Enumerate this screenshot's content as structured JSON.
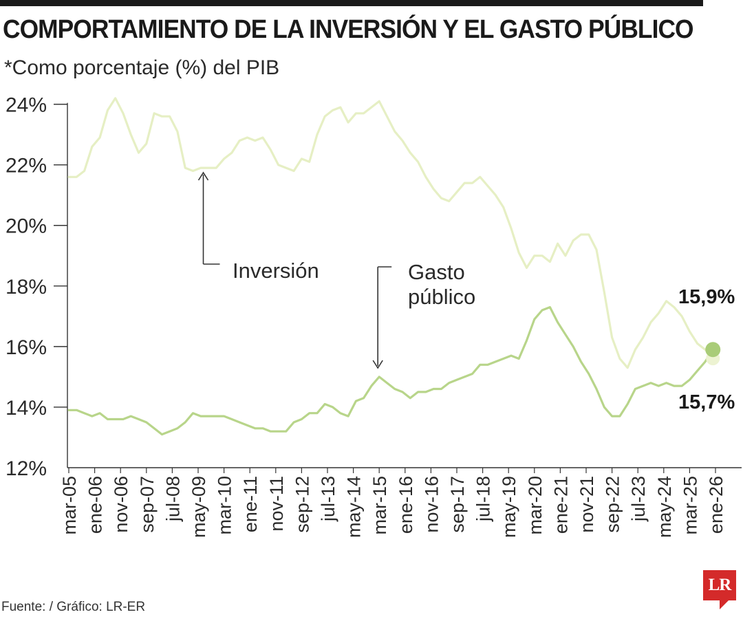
{
  "header": {
    "title": "COMPORTAMIENTO DE LA INVERSIÓN Y EL GASTO PÚBLICO",
    "subtitle": "*Como porcentaje (%) del PIB"
  },
  "footer": {
    "source": "Fuente: / Gráfico: LR-ER",
    "logo": "LR"
  },
  "colors": {
    "inversion": "#e6efc4",
    "gasto": "#b8d58a",
    "marker_gasto": "#a9cc78",
    "marker_inversion": "#edf3d2",
    "axis": "#333333"
  },
  "chart_data": {
    "type": "line",
    "ylim": [
      12,
      24.4
    ],
    "yticks": [
      12,
      14,
      16,
      18,
      20,
      22,
      24
    ],
    "ytick_labels": [
      "12%",
      "14%",
      "16%",
      "18%",
      "20%",
      "22%",
      "24%"
    ],
    "x_range": [
      "2005-03",
      "2026-01"
    ],
    "xticks": [
      {
        "date": "2005-03",
        "label": "mar-05"
      },
      {
        "date": "2006-01",
        "label": "ene-06"
      },
      {
        "date": "2006-11",
        "label": "nov-06"
      },
      {
        "date": "2007-09",
        "label": "sep-07"
      },
      {
        "date": "2008-07",
        "label": "jul-08"
      },
      {
        "date": "2009-05",
        "label": "may-09"
      },
      {
        "date": "2010-03",
        "label": "mar-10"
      },
      {
        "date": "2011-01",
        "label": "ene-11"
      },
      {
        "date": "2011-11",
        "label": "nov-11"
      },
      {
        "date": "2012-09",
        "label": "sep-12"
      },
      {
        "date": "2013-07",
        "label": "jul-13"
      },
      {
        "date": "2014-05",
        "label": "may-14"
      },
      {
        "date": "2015-03",
        "label": "mar-15"
      },
      {
        "date": "2016-01",
        "label": "ene-16"
      },
      {
        "date": "2016-11",
        "label": "nov-16"
      },
      {
        "date": "2017-09",
        "label": "sep-17"
      },
      {
        "date": "2018-07",
        "label": "jul-18"
      },
      {
        "date": "2019-05",
        "label": "may-19"
      },
      {
        "date": "2020-03",
        "label": "mar-20"
      },
      {
        "date": "2021-01",
        "label": "ene-21"
      },
      {
        "date": "2021-11",
        "label": "nov-21"
      },
      {
        "date": "2022-09",
        "label": "sep-22"
      },
      {
        "date": "2023-07",
        "label": "jul-23"
      },
      {
        "date": "2024-05",
        "label": "may-24"
      },
      {
        "date": "2025-03",
        "label": "mar-25"
      },
      {
        "date": "2026-01",
        "label": "ene-26"
      }
    ],
    "series": [
      {
        "name": "Inversión",
        "x": [
          "2005-03",
          "2005-06",
          "2005-09",
          "2005-12",
          "2006-03",
          "2006-06",
          "2006-09",
          "2006-12",
          "2007-03",
          "2007-06",
          "2007-09",
          "2007-12",
          "2008-03",
          "2008-06",
          "2008-09",
          "2008-12",
          "2009-03",
          "2009-06",
          "2009-09",
          "2009-12",
          "2010-03",
          "2010-06",
          "2010-09",
          "2010-12",
          "2011-03",
          "2011-06",
          "2011-09",
          "2011-12",
          "2012-03",
          "2012-06",
          "2012-09",
          "2012-12",
          "2013-03",
          "2013-06",
          "2013-09",
          "2013-12",
          "2014-03",
          "2014-06",
          "2014-09",
          "2014-12",
          "2015-03",
          "2015-06",
          "2015-09",
          "2015-12",
          "2016-03",
          "2016-06",
          "2016-09",
          "2016-12",
          "2017-03",
          "2017-06",
          "2017-09",
          "2017-12",
          "2018-03",
          "2018-06",
          "2018-09",
          "2018-12",
          "2019-03",
          "2019-06",
          "2019-09",
          "2019-12",
          "2020-03",
          "2020-06",
          "2020-09",
          "2020-12",
          "2021-03",
          "2021-06",
          "2021-09",
          "2021-12",
          "2022-03",
          "2022-06",
          "2022-09",
          "2022-12",
          "2023-03",
          "2023-06",
          "2023-09",
          "2023-12",
          "2024-03",
          "2024-06",
          "2024-09",
          "2024-12",
          "2025-03",
          "2025-06",
          "2025-09",
          "2025-12"
        ],
        "values": [
          21.6,
          21.6,
          21.8,
          22.6,
          22.9,
          23.8,
          24.2,
          23.7,
          23.0,
          22.4,
          22.7,
          23.7,
          23.6,
          23.6,
          23.1,
          21.9,
          21.8,
          21.9,
          21.9,
          21.9,
          22.2,
          22.4,
          22.8,
          22.9,
          22.8,
          22.9,
          22.5,
          22.0,
          21.9,
          21.8,
          22.2,
          22.1,
          23.0,
          23.6,
          23.8,
          23.9,
          23.4,
          23.7,
          23.7,
          23.9,
          24.1,
          23.6,
          23.1,
          22.8,
          22.4,
          22.1,
          21.6,
          21.2,
          20.9,
          20.8,
          21.1,
          21.4,
          21.4,
          21.6,
          21.3,
          21.0,
          20.6,
          19.9,
          19.1,
          18.6,
          19.0,
          19.0,
          18.8,
          19.4,
          19.0,
          19.5,
          19.7,
          19.7,
          19.2,
          17.8,
          16.3,
          15.6,
          15.3,
          15.9,
          16.3,
          16.8,
          17.1,
          17.5,
          17.3,
          17.0,
          16.5,
          16.1,
          15.9,
          15.7
        ]
      },
      {
        "name": "Gasto público",
        "x": [
          "2005-03",
          "2005-06",
          "2005-09",
          "2005-12",
          "2006-03",
          "2006-06",
          "2006-09",
          "2006-12",
          "2007-03",
          "2007-06",
          "2007-09",
          "2007-12",
          "2008-03",
          "2008-06",
          "2008-09",
          "2008-12",
          "2009-03",
          "2009-06",
          "2009-09",
          "2009-12",
          "2010-03",
          "2010-06",
          "2010-09",
          "2010-12",
          "2011-03",
          "2011-06",
          "2011-09",
          "2011-12",
          "2012-03",
          "2012-06",
          "2012-09",
          "2012-12",
          "2013-03",
          "2013-06",
          "2013-09",
          "2013-12",
          "2014-03",
          "2014-06",
          "2014-09",
          "2014-12",
          "2015-03",
          "2015-06",
          "2015-09",
          "2015-12",
          "2016-03",
          "2016-06",
          "2016-09",
          "2016-12",
          "2017-03",
          "2017-06",
          "2017-09",
          "2017-12",
          "2018-03",
          "2018-06",
          "2018-09",
          "2018-12",
          "2019-03",
          "2019-06",
          "2019-09",
          "2019-12",
          "2020-03",
          "2020-06",
          "2020-09",
          "2020-12",
          "2021-03",
          "2021-06",
          "2021-09",
          "2021-12",
          "2022-03",
          "2022-06",
          "2022-09",
          "2022-12",
          "2023-03",
          "2023-06",
          "2023-09",
          "2023-12",
          "2024-03",
          "2024-06",
          "2024-09",
          "2024-12",
          "2025-03",
          "2025-06",
          "2025-09",
          "2025-12"
        ],
        "values": [
          13.9,
          13.9,
          13.8,
          13.7,
          13.8,
          13.6,
          13.6,
          13.6,
          13.7,
          13.6,
          13.5,
          13.3,
          13.1,
          13.2,
          13.3,
          13.5,
          13.8,
          13.7,
          13.7,
          13.7,
          13.7,
          13.6,
          13.5,
          13.4,
          13.3,
          13.3,
          13.2,
          13.2,
          13.2,
          13.5,
          13.6,
          13.8,
          13.8,
          14.1,
          14.0,
          13.8,
          13.7,
          14.2,
          14.3,
          14.7,
          15.0,
          14.8,
          14.6,
          14.5,
          14.3,
          14.5,
          14.5,
          14.6,
          14.6,
          14.8,
          14.9,
          15.0,
          15.1,
          15.4,
          15.4,
          15.5,
          15.6,
          15.7,
          15.6,
          16.2,
          16.9,
          17.2,
          17.3,
          16.8,
          16.4,
          16.0,
          15.5,
          15.1,
          14.6,
          14.0,
          13.7,
          13.7,
          14.1,
          14.6,
          14.7,
          14.8,
          14.7,
          14.8,
          14.7,
          14.7,
          14.9,
          15.2,
          15.5,
          15.9
        ]
      }
    ],
    "annotations": [
      {
        "text": "Inversión",
        "series": "Inversión",
        "date": "2009-07"
      },
      {
        "text": "Gasto público",
        "series": "Gasto público",
        "date": "2015-03"
      }
    ],
    "end_labels": [
      {
        "text": "15,9%",
        "series": "Gasto público",
        "value": 15.9
      },
      {
        "text": "15,7%",
        "series": "Inversión",
        "value": 15.7
      }
    ]
  }
}
